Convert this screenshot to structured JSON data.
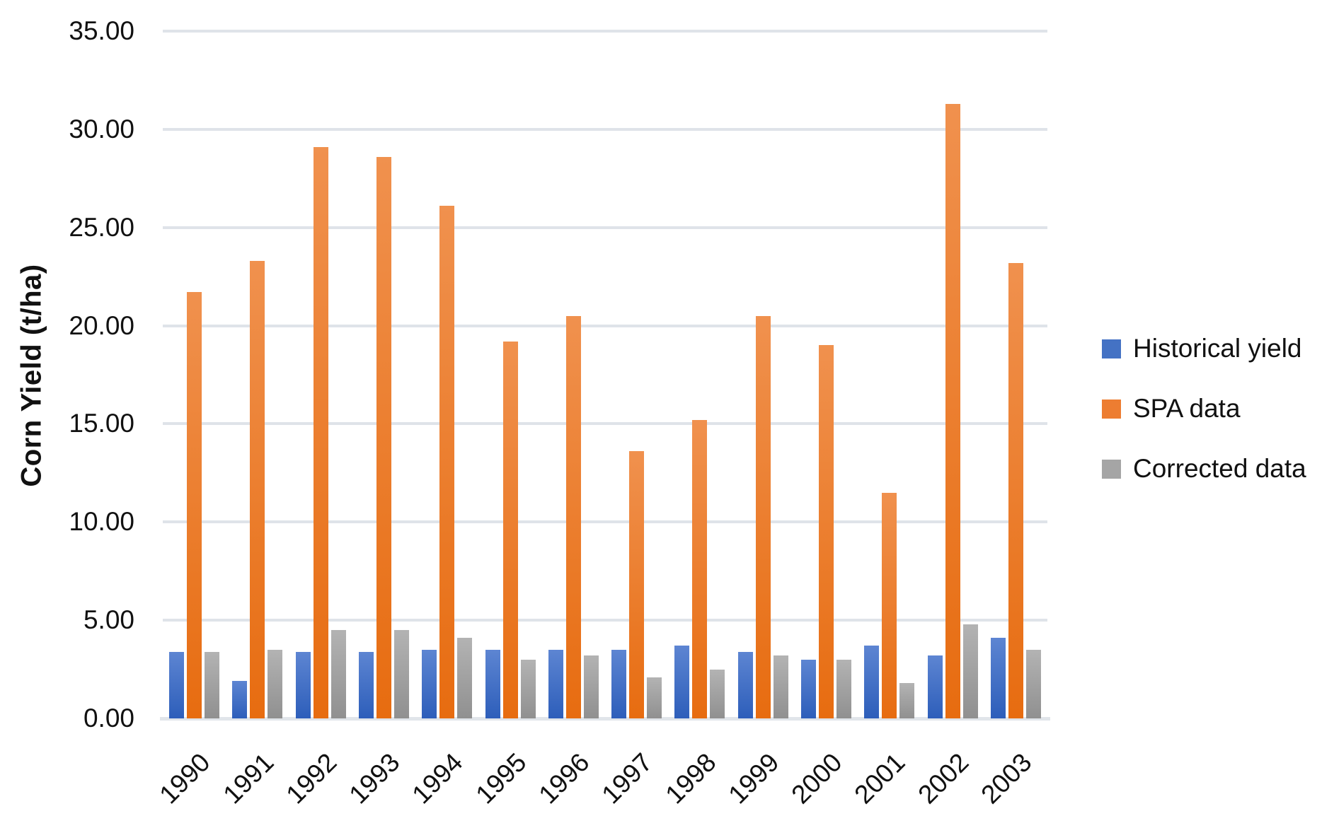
{
  "chart_data": {
    "type": "bar",
    "title": "",
    "xlabel": "",
    "ylabel": "Corn Yield  (t/ha)",
    "ylim": [
      0,
      35
    ],
    "y_tick_step": 5,
    "y_ticks": [
      "0.00",
      "5.00",
      "10.00",
      "15.00",
      "20.00",
      "25.00",
      "30.00",
      "35.00"
    ],
    "grid": "horizontal",
    "legend_position": "right",
    "categories": [
      "1990",
      "1991",
      "1992",
      "1993",
      "1994",
      "1995",
      "1996",
      "1997",
      "1998",
      "1999",
      "2000",
      "2001",
      "2002",
      "2003"
    ],
    "series": [
      {
        "name": "Historical yield",
        "color": "#4472C4",
        "gradient": [
          "#5d85d2",
          "#2d5eba"
        ],
        "values": [
          3.4,
          1.9,
          3.4,
          3.4,
          3.5,
          3.5,
          3.5,
          3.5,
          3.7,
          3.4,
          3.0,
          3.7,
          3.2,
          4.1
        ]
      },
      {
        "name": "SPA data",
        "color": "#ED7D31",
        "gradient": [
          "#f0914e",
          "#e76c10"
        ],
        "values": [
          21.7,
          23.3,
          29.1,
          28.6,
          26.1,
          19.2,
          20.5,
          13.6,
          15.2,
          20.5,
          19.0,
          11.5,
          31.3,
          23.2
        ]
      },
      {
        "name": "Corrected data",
        "color": "#A5A5A5",
        "gradient": [
          "#b3b3b3",
          "#909090"
        ],
        "values": [
          3.4,
          3.5,
          4.5,
          4.5,
          4.1,
          3.0,
          3.2,
          2.1,
          2.5,
          3.2,
          3.0,
          1.8,
          4.8,
          3.5
        ]
      }
    ]
  }
}
